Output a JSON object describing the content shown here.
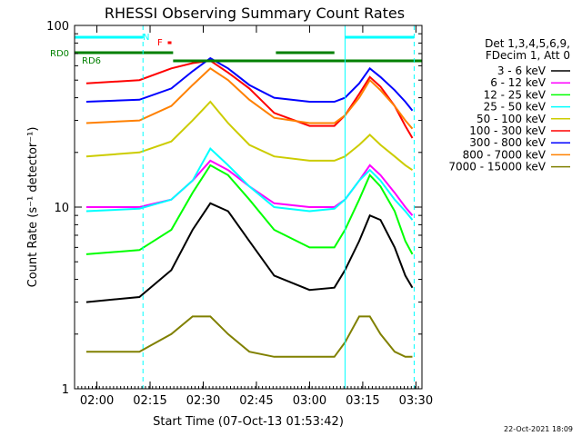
{
  "chart_data": {
    "type": "line",
    "title": "RHESSI Observing Summary Count Rates",
    "xlabel": "Start Time (07-Oct-13 01:53:42)",
    "ylabel": "Count Rate (s⁻¹ detector⁻¹)",
    "y_scale": "log",
    "ylim": [
      1,
      100
    ],
    "xlim": [
      "01:53:42",
      "03:31:42"
    ],
    "x_tick_labels": [
      "02:00",
      "02:15",
      "02:30",
      "02:45",
      "03:00",
      "03:15",
      "03:30"
    ],
    "y_tick_labels": [
      "1",
      "10",
      "100"
    ],
    "grid": false,
    "legend_position": "right",
    "legend_header": [
      "Det 1,3,4,5,6,9,",
      "FDecim 1, Att 0"
    ],
    "flag_labels": [
      "N",
      "F",
      "RD0",
      "RD6"
    ],
    "timestamp": "22-Oct-2021 18:09",
    "series": [
      {
        "name": "3 - 6 keV",
        "color": "#000000",
        "x": [
          "01:57",
          "02:12",
          "02:21",
          "02:27",
          "02:32",
          "02:37",
          "02:43",
          "02:50",
          "03:00",
          "03:07",
          "03:10",
          "03:14",
          "03:17",
          "03:20",
          "03:24",
          "03:27",
          "03:29"
        ],
        "values": [
          3.0,
          3.2,
          4.5,
          7.5,
          10.5,
          9.5,
          6.5,
          4.2,
          3.5,
          3.6,
          4.5,
          6.5,
          9,
          8.5,
          6,
          4.2,
          3.6
        ]
      },
      {
        "name": "6 - 12 keV",
        "color": "#ff00ff",
        "x": [
          "01:57",
          "02:12",
          "02:21",
          "02:27",
          "02:32",
          "02:37",
          "02:43",
          "02:50",
          "03:00",
          "03:07",
          "03:10",
          "03:14",
          "03:17",
          "03:20",
          "03:24",
          "03:27",
          "03:29"
        ],
        "values": [
          10,
          10,
          11,
          14,
          18,
          16,
          13,
          10.5,
          10,
          10,
          11,
          14,
          17,
          15,
          12,
          10,
          9
        ]
      },
      {
        "name": "12 - 25 keV",
        "color": "#00ff00",
        "x": [
          "01:57",
          "02:12",
          "02:21",
          "02:27",
          "02:32",
          "02:37",
          "02:43",
          "02:50",
          "03:00",
          "03:07",
          "03:10",
          "03:14",
          "03:17",
          "03:20",
          "03:24",
          "03:27",
          "03:29"
        ],
        "values": [
          5.5,
          5.8,
          7.5,
          12,
          17,
          15,
          11,
          7.5,
          6.0,
          6.0,
          7.5,
          11,
          15,
          13,
          9.5,
          6.5,
          5.5
        ]
      },
      {
        "name": "25 - 50 keV",
        "color": "#00ffff",
        "x": [
          "01:57",
          "02:12",
          "02:21",
          "02:27",
          "02:32",
          "02:37",
          "02:43",
          "02:50",
          "03:00",
          "03:07",
          "03:10",
          "03:14",
          "03:17",
          "03:20",
          "03:24",
          "03:27",
          "03:29"
        ],
        "values": [
          9.5,
          9.8,
          11,
          14,
          21,
          17,
          13,
          10,
          9.5,
          9.8,
          11,
          14,
          16,
          14,
          11,
          9.5,
          8.5
        ]
      },
      {
        "name": "50 - 100 keV",
        "color": "#cccc00",
        "x": [
          "01:57",
          "02:12",
          "02:21",
          "02:27",
          "02:32",
          "02:37",
          "02:43",
          "02:50",
          "03:00",
          "03:07",
          "03:10",
          "03:14",
          "03:17",
          "03:20",
          "03:24",
          "03:27",
          "03:29"
        ],
        "values": [
          19,
          20,
          23,
          30,
          38,
          29,
          22,
          19,
          18,
          18,
          19,
          22,
          25,
          22,
          19,
          17,
          16
        ]
      },
      {
        "name": "100 - 300 keV",
        "color": "#ff0000",
        "x": [
          "01:57",
          "02:12",
          "02:21",
          "02:27",
          "02:32",
          "02:37",
          "02:43",
          "02:50",
          "03:00",
          "03:07",
          "03:10",
          "03:14",
          "03:17",
          "03:20",
          "03:24",
          "03:27",
          "03:29"
        ],
        "values": [
          48,
          50,
          58,
          62,
          64,
          55,
          45,
          33,
          28,
          28,
          32,
          42,
          52,
          46,
          36,
          28,
          24
        ]
      },
      {
        "name": "300 - 800 keV",
        "color": "#0000ff",
        "x": [
          "01:57",
          "02:12",
          "02:21",
          "02:27",
          "02:32",
          "02:37",
          "02:43",
          "02:50",
          "03:00",
          "03:07",
          "03:10",
          "03:14",
          "03:17",
          "03:20",
          "03:24",
          "03:27",
          "03:29"
        ],
        "values": [
          38,
          39,
          45,
          56,
          66,
          58,
          47,
          40,
          38,
          38,
          40,
          48,
          58,
          52,
          44,
          38,
          34
        ]
      },
      {
        "name": "800 - 7000 keV",
        "color": "#ff8000",
        "x": [
          "01:57",
          "02:12",
          "02:21",
          "02:27",
          "02:32",
          "02:37",
          "02:43",
          "02:50",
          "03:00",
          "03:07",
          "03:10",
          "03:14",
          "03:17",
          "03:20",
          "03:24",
          "03:27",
          "03:29"
        ],
        "values": [
          29,
          30,
          36,
          47,
          58,
          50,
          39,
          31,
          29,
          29,
          32,
          40,
          50,
          44,
          36,
          30,
          27
        ]
      },
      {
        "name": "7000 - 15000 keV",
        "color": "#808000",
        "x": [
          "01:57",
          "02:12",
          "02:21",
          "02:27",
          "02:32",
          "02:37",
          "02:43",
          "02:50",
          "03:00",
          "03:07",
          "03:10",
          "03:14",
          "03:17",
          "03:20",
          "03:24",
          "03:27",
          "03:29"
        ],
        "values": [
          1.6,
          1.6,
          2.0,
          2.5,
          2.5,
          2.0,
          1.6,
          1.5,
          1.5,
          1.5,
          1.8,
          2.5,
          2.5,
          2.0,
          1.6,
          1.5,
          1.5
        ]
      }
    ],
    "flags": {
      "N_intervals": [
        [
          "01:53:42",
          "02:13:00"
        ],
        [
          "03:10:00",
          "03:29:30"
        ]
      ],
      "RD0_intervals": [
        [
          "01:53:42",
          "02:21:30"
        ],
        [
          "02:50:30",
          "03:07:00"
        ]
      ],
      "RD6_intervals": [
        [
          "02:21:30",
          "03:31:42"
        ]
      ],
      "F_intervals": [
        [
          "02:20:00",
          "02:21:30"
        ]
      ]
    }
  }
}
